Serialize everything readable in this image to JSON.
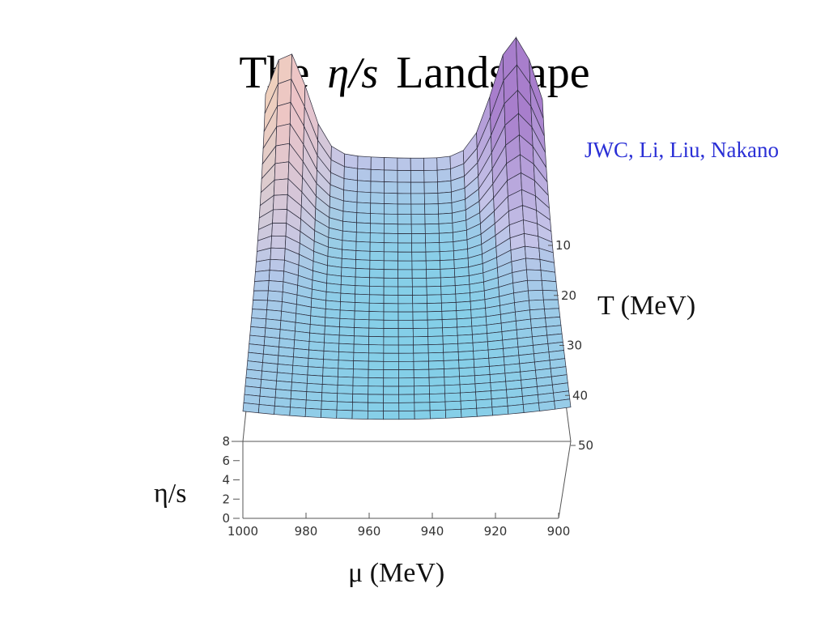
{
  "slide": {
    "title_prefix": "The",
    "title_symbol": "η/s",
    "title_suffix": "Landscape",
    "authors": "JWC, Li, Liu, Nakano"
  },
  "chart_data": {
    "type": "surface3d",
    "zlabel": "η/s",
    "xlabel": "μ (MeV)",
    "ylabel": "T (MeV)",
    "x_ticks": [
      1000,
      980,
      960,
      940,
      920,
      900
    ],
    "y_ticks": [
      10,
      20,
      30,
      40,
      50
    ],
    "z_ticks": [
      0,
      2,
      4,
      6,
      8
    ],
    "xlim": [
      900,
      1000
    ],
    "ylim": [
      10,
      50
    ],
    "zlim": [
      0,
      8
    ],
    "grid_size": [
      21,
      29
    ],
    "description_values": {
      "min_eta_s_region": "valley near μ≈930–950 MeV, T≈25–35 MeV",
      "high_eta_s_edges": "rises sharply at low T and at μ extremes"
    },
    "colors": {
      "low": "#7fd3e6",
      "mid": "#c9c6e8",
      "high": "#e8b3d6",
      "peak_left": "#f3e6a8",
      "peak_right": "#a77ec9"
    }
  }
}
